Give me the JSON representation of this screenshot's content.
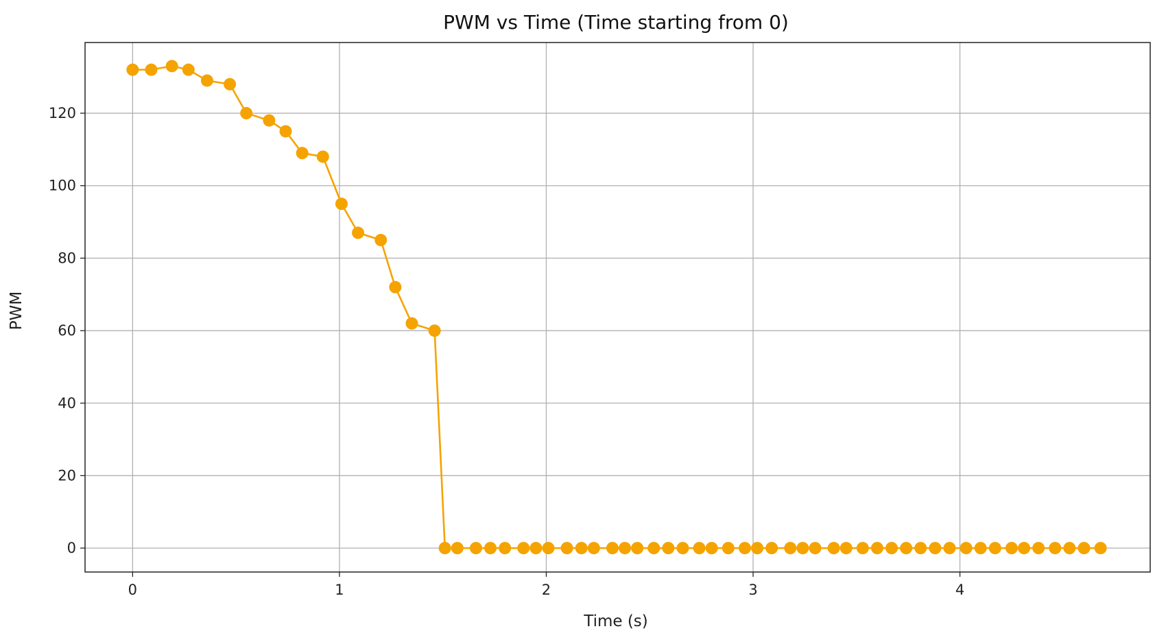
{
  "chart_data": {
    "type": "line",
    "title": "PWM vs Time (Time starting from 0)",
    "xlabel": "Time (s)",
    "ylabel": "PWM",
    "xlim": [
      -0.23,
      4.92
    ],
    "ylim": [
      -6.6,
      139.5
    ],
    "xticks": [
      0,
      1,
      2,
      3,
      4
    ],
    "xtick_labels": [
      "0",
      "1",
      "2",
      "3",
      "4"
    ],
    "yticks": [
      0,
      20,
      40,
      60,
      80,
      100,
      120
    ],
    "ytick_labels": [
      "0",
      "20",
      "40",
      "60",
      "80",
      "100",
      "120"
    ],
    "grid": true,
    "legend": "none",
    "marker": "circle",
    "series": [
      {
        "color": "#F5A300",
        "x": [
          0.0,
          0.09,
          0.19,
          0.27,
          0.36,
          0.47,
          0.55,
          0.66,
          0.74,
          0.82,
          0.92,
          1.01,
          1.09,
          1.2,
          1.27,
          1.35,
          1.46,
          1.51,
          1.57,
          1.66,
          1.73,
          1.8,
          1.89,
          1.95,
          2.01,
          2.1,
          2.17,
          2.23,
          2.32,
          2.38,
          2.44,
          2.52,
          2.59,
          2.66,
          2.74,
          2.8,
          2.88,
          2.96,
          3.02,
          3.09,
          3.18,
          3.24,
          3.3,
          3.39,
          3.45,
          3.53,
          3.6,
          3.67,
          3.74,
          3.81,
          3.88,
          3.95,
          4.03,
          4.1,
          4.17,
          4.25,
          4.31,
          4.38,
          4.46,
          4.53,
          4.6,
          4.68
        ],
        "y": [
          132,
          132,
          133,
          132,
          129,
          128,
          120,
          118,
          115,
          109,
          108,
          95,
          87,
          85,
          72,
          62,
          60,
          0,
          0,
          0,
          0,
          0,
          0,
          0,
          0,
          0,
          0,
          0,
          0,
          0,
          0,
          0,
          0,
          0,
          0,
          0,
          0,
          0,
          0,
          0,
          0,
          0,
          0,
          0,
          0,
          0,
          0,
          0,
          0,
          0,
          0,
          0,
          0,
          0,
          0,
          0,
          0,
          0,
          0,
          0,
          0,
          0
        ]
      }
    ]
  }
}
